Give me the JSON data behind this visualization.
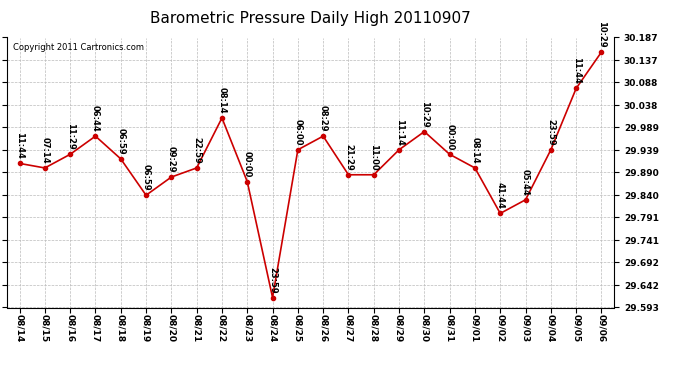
{
  "title": "Barometric Pressure Daily High 20110907",
  "copyright": "Copyright 2011 Cartronics.com",
  "x_labels": [
    "08/14",
    "08/15",
    "08/16",
    "08/17",
    "08/18",
    "08/19",
    "08/20",
    "08/21",
    "08/22",
    "08/23",
    "08/24",
    "08/25",
    "08/26",
    "08/27",
    "08/28",
    "08/29",
    "08/30",
    "08/31",
    "09/01",
    "09/02",
    "09/03",
    "09/04",
    "09/05",
    "09/06"
  ],
  "y_values": [
    29.91,
    29.9,
    29.93,
    29.97,
    29.92,
    29.84,
    29.88,
    29.9,
    30.01,
    29.87,
    29.615,
    29.94,
    29.97,
    29.885,
    29.885,
    29.94,
    29.98,
    29.93,
    29.9,
    29.8,
    29.83,
    29.94,
    30.075,
    30.155
  ],
  "point_labels": [
    "11:44",
    "07:14",
    "11:29",
    "06:44",
    "06:59",
    "06:59",
    "09:29",
    "22:59",
    "08:14",
    "00:00",
    "23:59",
    "06:00",
    "08:29",
    "21:29",
    "11:00",
    "11:14",
    "10:29",
    "00:00",
    "08:14",
    "41:44",
    "05:44",
    "23:59",
    "11:44",
    "10:29"
  ],
  "line_color": "#cc0000",
  "marker_color": "#cc0000",
  "bg_color": "#ffffff",
  "grid_color": "#bbbbbb",
  "ylim_min": 29.593,
  "ylim_max": 30.187,
  "yticks": [
    29.593,
    29.642,
    29.692,
    29.741,
    29.791,
    29.84,
    29.89,
    29.939,
    29.989,
    30.038,
    30.088,
    30.137,
    30.187
  ],
  "title_fontsize": 11,
  "label_fontsize": 6,
  "tick_fontsize": 6.5,
  "copyright_fontsize": 6
}
